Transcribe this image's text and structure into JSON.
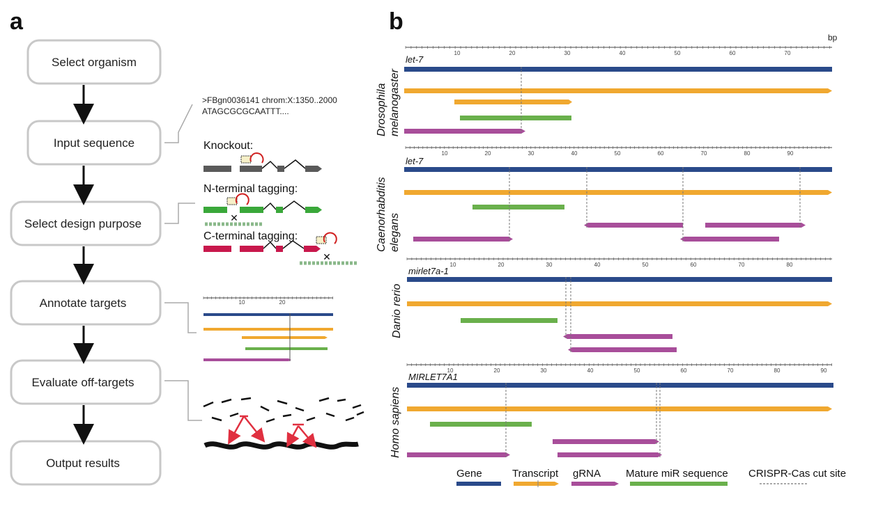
{
  "panel_a": {
    "letter": "a",
    "steps": [
      "Select organism",
      "Input sequence",
      "Select design purpose",
      "Annotate targets",
      "Evaluate off-targets",
      "Output results"
    ],
    "sequence": {
      "header": ">FBgn0036141 chrom:X:1350..2000",
      "bases": "ATAGCGCGCAATTT...."
    },
    "purposes": [
      "Knockout:",
      "N-terminal tagging:",
      "C-terminal tagging:"
    ],
    "mini_ticks": [
      "10",
      "20"
    ]
  },
  "panel_b": {
    "letter": "b",
    "unit": "bp",
    "tracks": [
      {
        "organism": "Drosophila melanogaster",
        "organism_lines": [
          "Drosophila",
          "melanogaster"
        ],
        "gene": "let-7",
        "tick_labels": [
          "10",
          "20",
          "30",
          "40",
          "50",
          "60",
          "70"
        ]
      },
      {
        "organism": "Caenorhabditis elegans",
        "organism_lines": [
          "Caenorhabditis",
          "elegans"
        ],
        "gene": "let-7",
        "tick_labels": [
          "10",
          "20",
          "30",
          "40",
          "50",
          "60",
          "70",
          "80",
          "90"
        ]
      },
      {
        "organism": "Danio rerio",
        "organism_lines": [
          "Danio rerio"
        ],
        "gene": "mirlet7a-1",
        "tick_labels": [
          "10",
          "20",
          "30",
          "40",
          "50",
          "60",
          "70",
          "80"
        ]
      },
      {
        "organism": "Homo sapiens",
        "organism_lines": [
          "Homo sapiens"
        ],
        "gene": "MIRLET7A1",
        "tick_labels": [
          "10",
          "20",
          "30",
          "40",
          "50",
          "60",
          "70",
          "80",
          "90"
        ]
      }
    ],
    "legend": [
      {
        "label": "Gene",
        "color": "#2a4a8a"
      },
      {
        "label": "Transcript",
        "color": "#f0a830"
      },
      {
        "label": "gRNA",
        "color": "#a84e9a"
      },
      {
        "label": "Mature miR sequence",
        "color": "#6ab04c"
      },
      {
        "label": "CRISPR-Cas cut site",
        "color": "#555555"
      }
    ]
  },
  "colors": {
    "gene": "#2a4a8a",
    "transcript": "#f0a830",
    "grna": "#a84e9a",
    "mature": "#6ab04c",
    "knockout_exon": "#5a5a5a",
    "n_tag": "#3aa83a",
    "c_tag": "#c8184c",
    "offtarget_arrow": "#e03040"
  }
}
